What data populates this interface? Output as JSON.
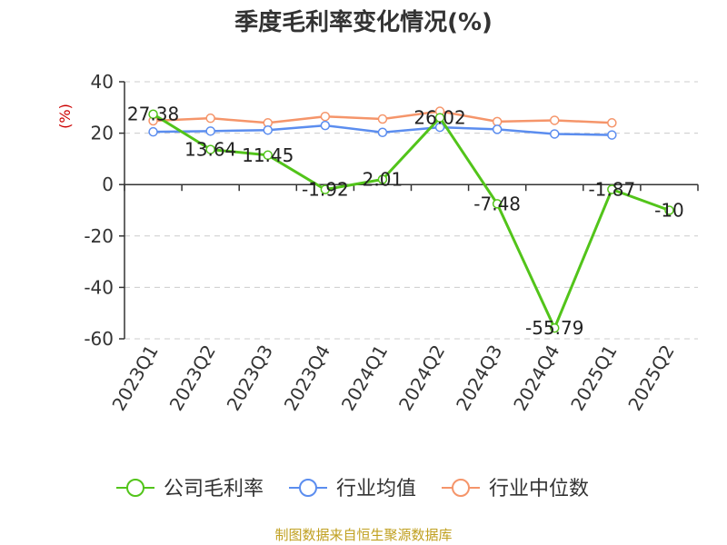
{
  "chart_data": {
    "type": "line",
    "title": "季度毛利率变化情况(%)",
    "ylabel": "(%)",
    "categories": [
      "2023Q1",
      "2023Q2",
      "2023Q3",
      "2023Q4",
      "2024Q1",
      "2024Q2",
      "2024Q3",
      "2024Q4",
      "2025Q1",
      "2025Q2"
    ],
    "ylim": [
      -60,
      40
    ],
    "yticks": [
      40,
      20,
      0,
      -20,
      -40,
      -60
    ],
    "grid": true,
    "legend_position": "bottom",
    "series": [
      {
        "name": "公司毛利率",
        "color": "#52c41a",
        "show_labels": true,
        "values": [
          27.38,
          13.64,
          11.45,
          -1.92,
          2.01,
          26.02,
          -7.48,
          -55.79,
          -1.87,
          -10
        ]
      },
      {
        "name": "行业均值",
        "color": "#5b8def",
        "show_labels": false,
        "values": [
          20.5,
          20.8,
          21.2,
          23.0,
          20.3,
          22.3,
          21.5,
          19.7,
          19.3,
          null
        ]
      },
      {
        "name": "行业中位数",
        "color": "#f5956a",
        "show_labels": false,
        "values": [
          24.8,
          25.8,
          24.0,
          26.5,
          25.5,
          28.5,
          24.5,
          25.0,
          24.0,
          null
        ]
      }
    ]
  },
  "footer": "制图数据来自恒生聚源数据库"
}
